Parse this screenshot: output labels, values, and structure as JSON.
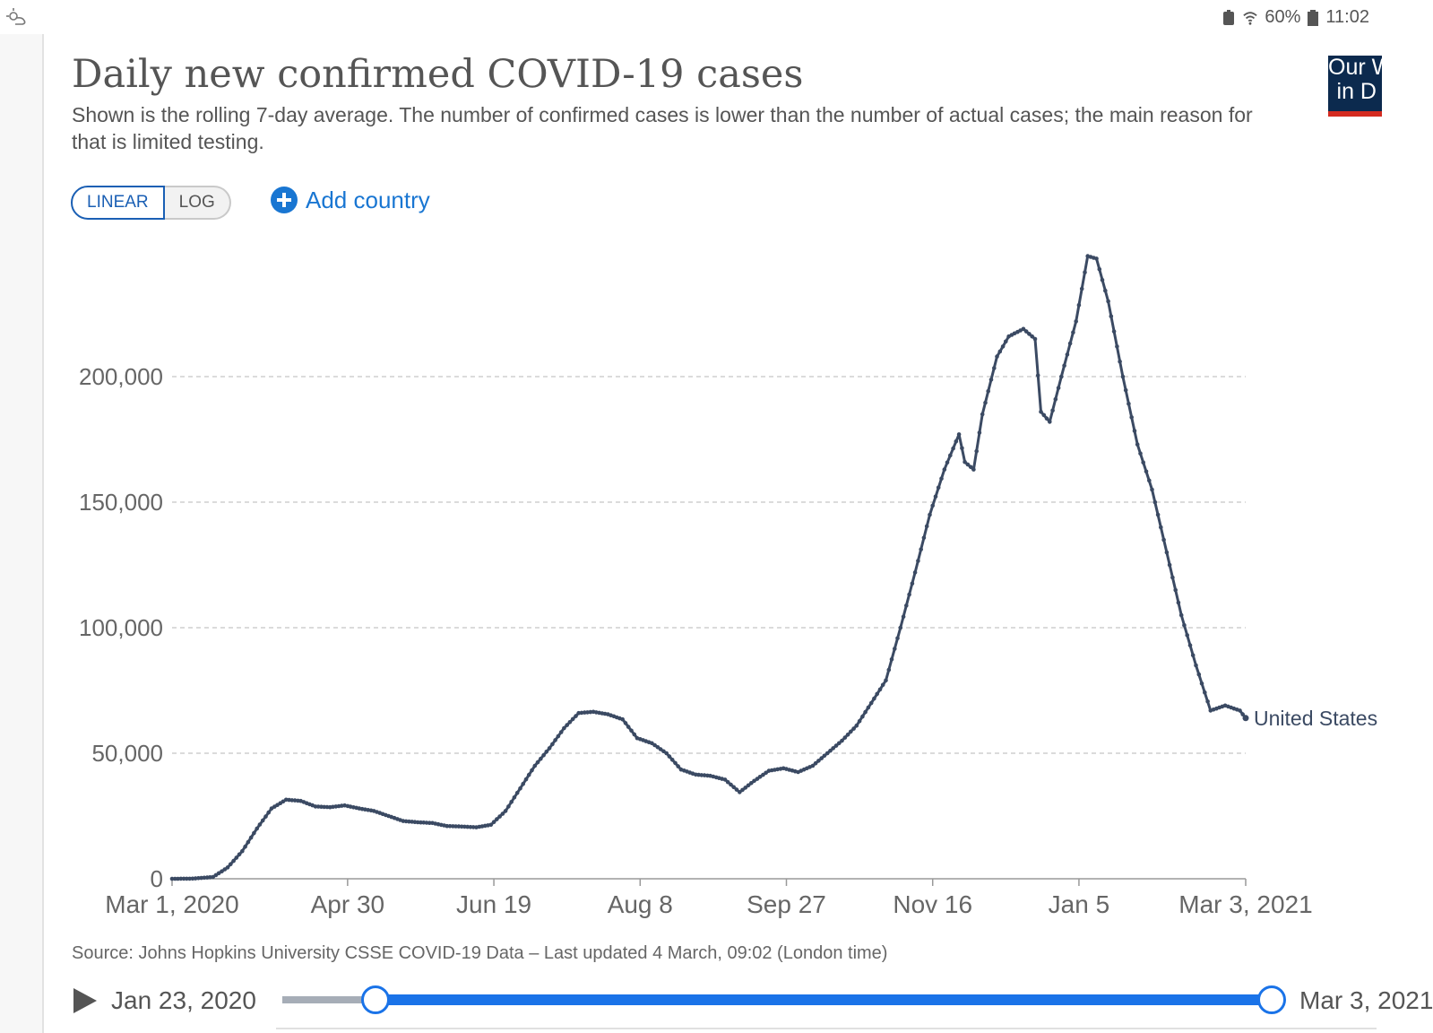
{
  "status_bar": {
    "battery": "60%",
    "time": "11:02"
  },
  "logo": {
    "line1": "Our W",
    "line2": "in D"
  },
  "header": {
    "title": "Daily new confirmed COVID-19 cases",
    "subtitle": "Shown is the rolling 7-day average. The number of confirmed cases is lower than the number of actual cases; the main reason for that is limited testing."
  },
  "controls": {
    "linear_label": "LINEAR",
    "log_label": "LOG",
    "add_country_label": "Add country",
    "selected_scale": "linear"
  },
  "chart_data": {
    "type": "line",
    "title": "Daily new confirmed COVID-19 cases",
    "ylim": [
      0,
      250000
    ],
    "yticks": [
      0,
      50000,
      100000,
      150000,
      200000
    ],
    "ytick_labels": [
      "0",
      "50,000",
      "100,000",
      "150,000",
      "200,000"
    ],
    "xlim": [
      "2020-03-01",
      "2021-03-03"
    ],
    "xtick_labels": [
      "Mar 1, 2020",
      "Apr 30",
      "Jun 19",
      "Aug 8",
      "Sep 27",
      "Nov 16",
      "Jan 5",
      "Mar 3, 2021"
    ],
    "xtick_dates": [
      "2020-03-01",
      "2020-04-30",
      "2020-06-19",
      "2020-08-08",
      "2020-09-27",
      "2020-11-16",
      "2021-01-05",
      "2021-03-03"
    ],
    "grid": "horizontal dashed",
    "line_color": "#3b4a63",
    "series": [
      {
        "name": "United States",
        "points": [
          [
            "2020-03-01",
            0
          ],
          [
            "2020-03-08",
            60
          ],
          [
            "2020-03-15",
            700
          ],
          [
            "2020-03-20",
            4500
          ],
          [
            "2020-03-25",
            11000
          ],
          [
            "2020-03-30",
            20000
          ],
          [
            "2020-04-04",
            28000
          ],
          [
            "2020-04-09",
            31500
          ],
          [
            "2020-04-14",
            31000
          ],
          [
            "2020-04-19",
            28800
          ],
          [
            "2020-04-24",
            28500
          ],
          [
            "2020-04-29",
            29200
          ],
          [
            "2020-05-04",
            28000
          ],
          [
            "2020-05-09",
            27000
          ],
          [
            "2020-05-14",
            25000
          ],
          [
            "2020-05-19",
            23000
          ],
          [
            "2020-05-24",
            22500
          ],
          [
            "2020-05-29",
            22200
          ],
          [
            "2020-06-03",
            21000
          ],
          [
            "2020-06-08",
            20800
          ],
          [
            "2020-06-13",
            20500
          ],
          [
            "2020-06-18",
            21500
          ],
          [
            "2020-06-23",
            27000
          ],
          [
            "2020-06-28",
            36000
          ],
          [
            "2020-07-03",
            45000
          ],
          [
            "2020-07-08",
            52000
          ],
          [
            "2020-07-13",
            60000
          ],
          [
            "2020-07-18",
            66000
          ],
          [
            "2020-07-23",
            66500
          ],
          [
            "2020-07-28",
            65500
          ],
          [
            "2020-08-02",
            63500
          ],
          [
            "2020-08-07",
            56000
          ],
          [
            "2020-08-12",
            54000
          ],
          [
            "2020-08-17",
            50000
          ],
          [
            "2020-08-22",
            43500
          ],
          [
            "2020-08-27",
            41500
          ],
          [
            "2020-09-01",
            41000
          ],
          [
            "2020-09-06",
            39500
          ],
          [
            "2020-09-11",
            34500
          ],
          [
            "2020-09-16",
            39000
          ],
          [
            "2020-09-21",
            43000
          ],
          [
            "2020-09-26",
            44000
          ],
          [
            "2020-10-01",
            42500
          ],
          [
            "2020-10-06",
            45000
          ],
          [
            "2020-10-11",
            50000
          ],
          [
            "2020-10-16",
            55000
          ],
          [
            "2020-10-21",
            61000
          ],
          [
            "2020-10-26",
            70000
          ],
          [
            "2020-10-31",
            79000
          ],
          [
            "2020-11-05",
            100000
          ],
          [
            "2020-11-10",
            122000
          ],
          [
            "2020-11-15",
            145000
          ],
          [
            "2020-11-20",
            163000
          ],
          [
            "2020-11-25",
            177000
          ],
          [
            "2020-11-27",
            166000
          ],
          [
            "2020-11-30",
            163000
          ],
          [
            "2020-12-03",
            185000
          ],
          [
            "2020-12-08",
            208000
          ],
          [
            "2020-12-12",
            216000
          ],
          [
            "2020-12-17",
            219000
          ],
          [
            "2020-12-21",
            215000
          ],
          [
            "2020-12-23",
            186000
          ],
          [
            "2020-12-26",
            182000
          ],
          [
            "2020-12-30",
            200000
          ],
          [
            "2021-01-04",
            222000
          ],
          [
            "2021-01-08",
            248000
          ],
          [
            "2021-01-11",
            247000
          ],
          [
            "2021-01-15",
            230000
          ],
          [
            "2021-01-20",
            200000
          ],
          [
            "2021-01-25",
            173000
          ],
          [
            "2021-01-30",
            155000
          ],
          [
            "2021-02-04",
            130000
          ],
          [
            "2021-02-09",
            105000
          ],
          [
            "2021-02-14",
            85000
          ],
          [
            "2021-02-19",
            67000
          ],
          [
            "2021-02-24",
            69000
          ],
          [
            "2021-03-01",
            67000
          ],
          [
            "2021-03-03",
            64000
          ]
        ]
      }
    ]
  },
  "footer": {
    "source": "Source: Johns Hopkins University CSSE COVID-19 Data – Last updated 4 March, 09:02 (London time)"
  },
  "timeline": {
    "start_label": "Jan 23, 2020",
    "end_label": "Mar 3, 2021"
  }
}
